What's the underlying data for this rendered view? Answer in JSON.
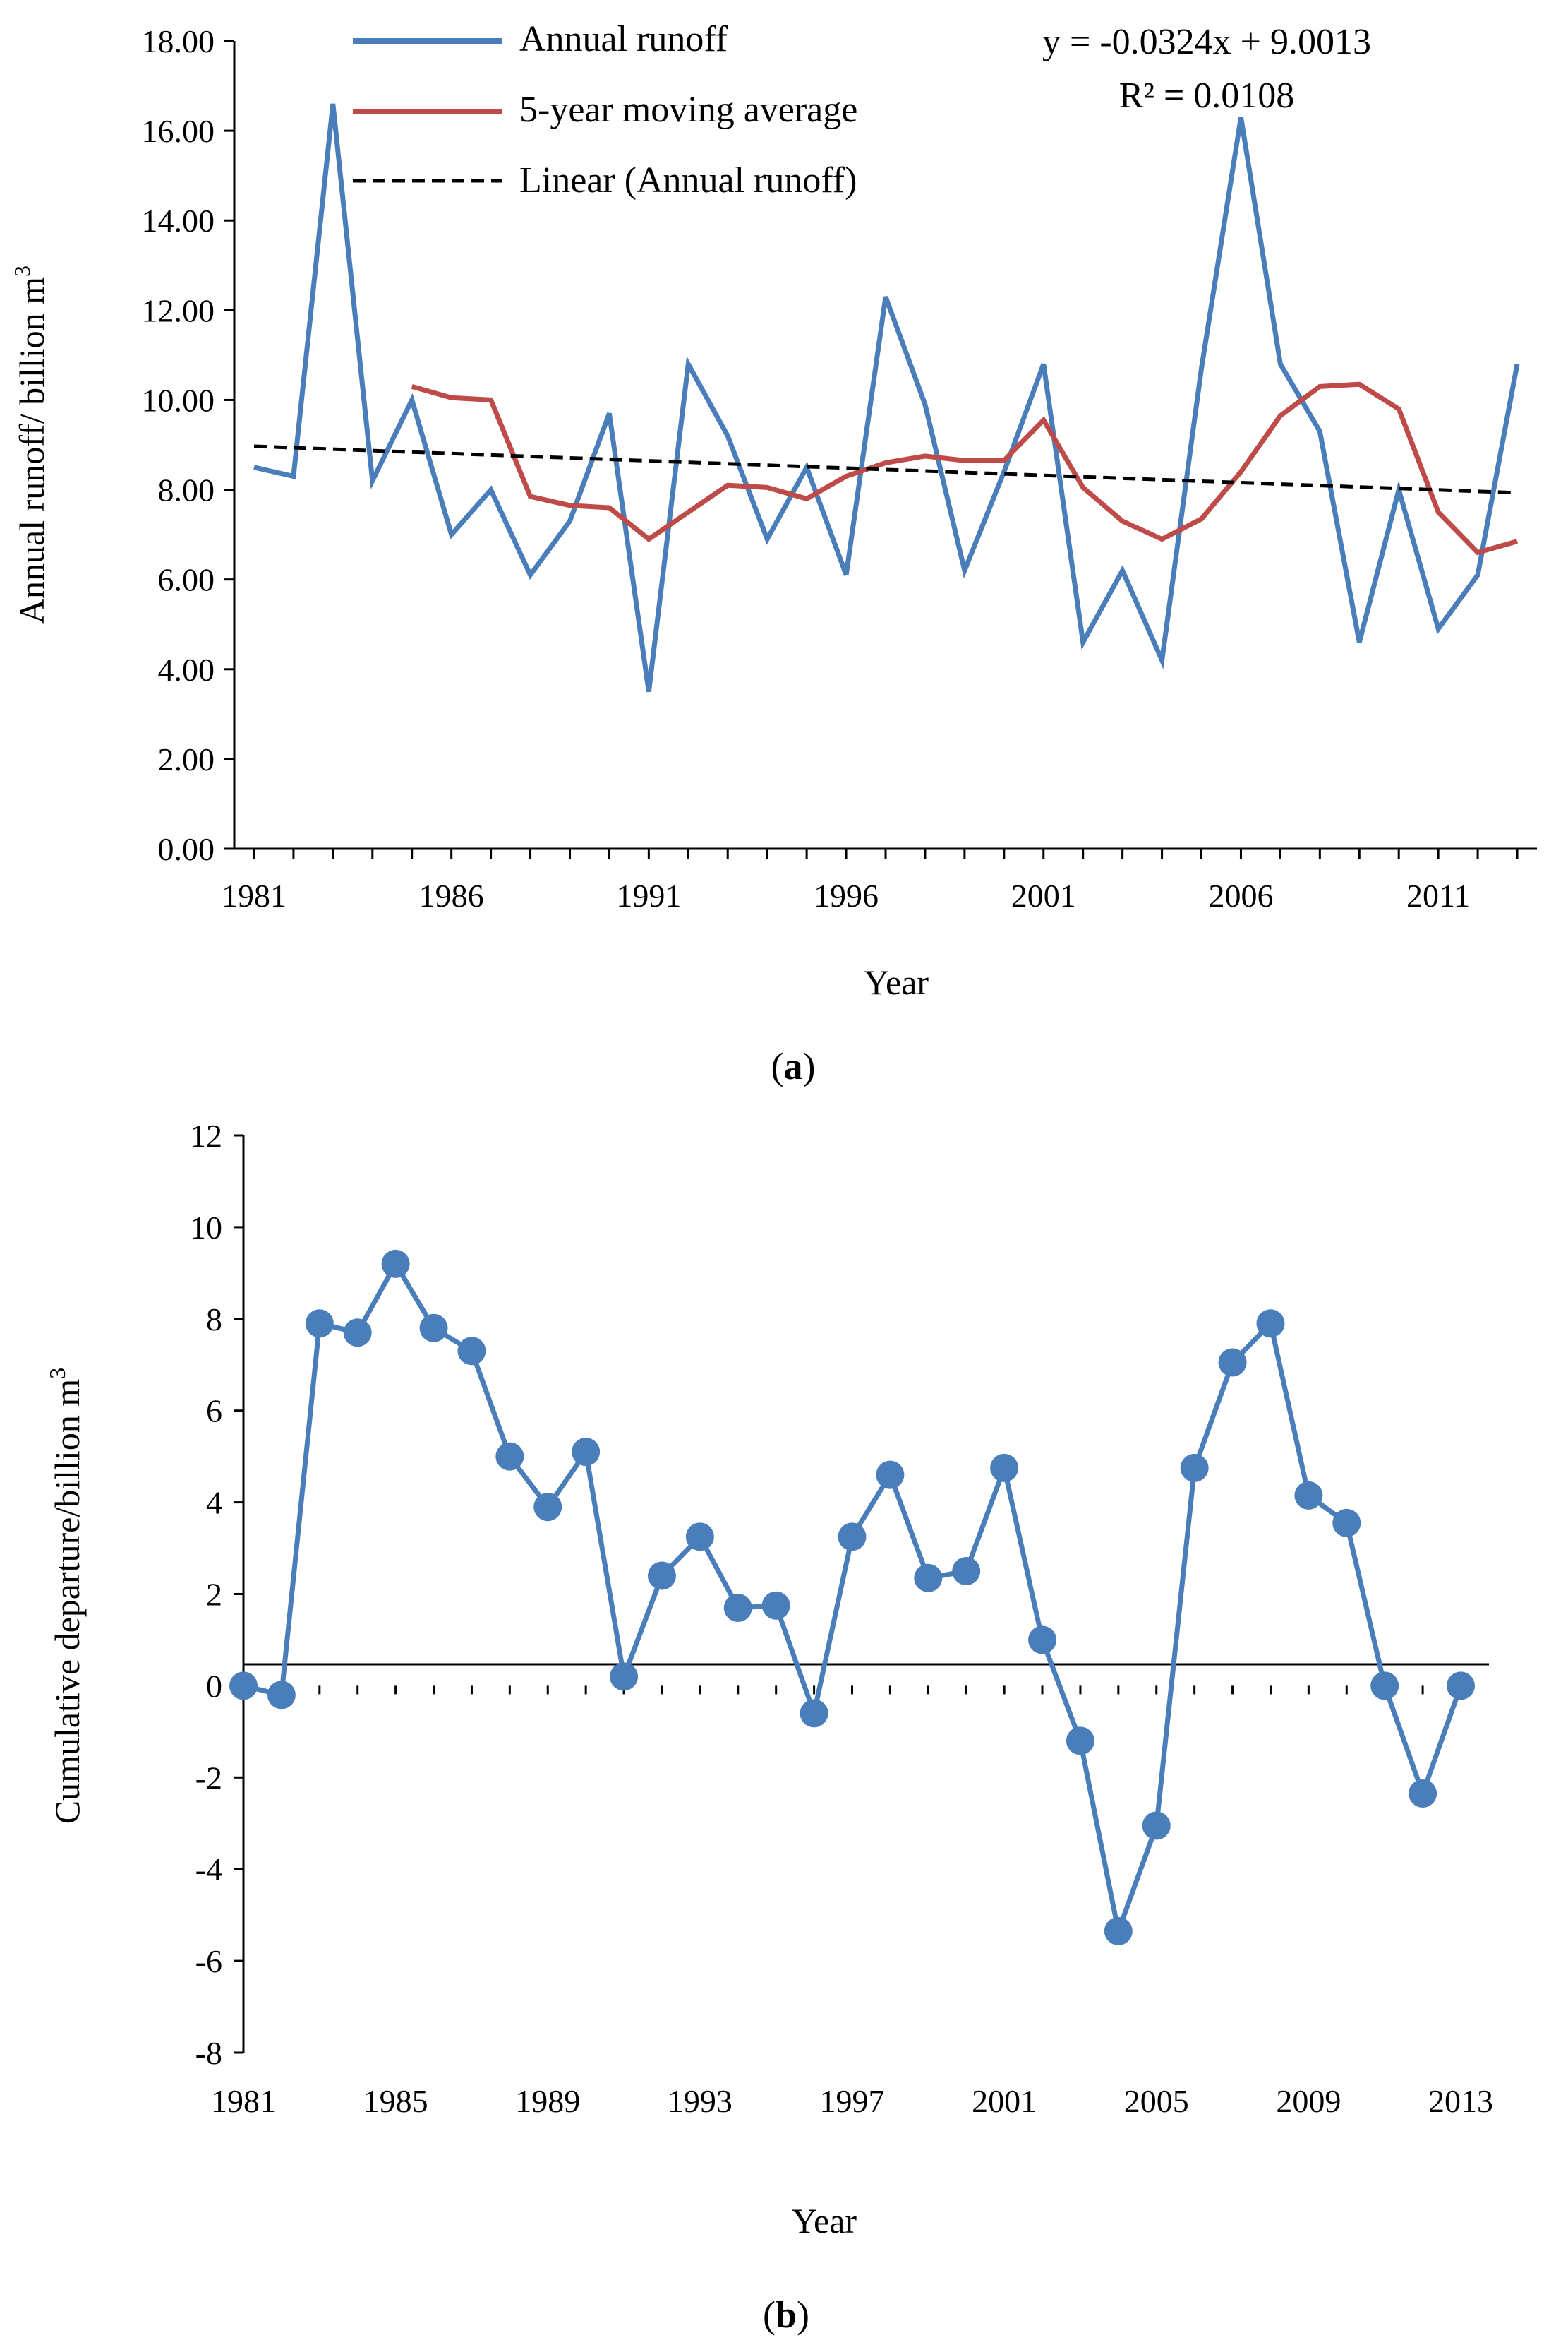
{
  "chart_data": [
    {
      "panel_label": "a",
      "type": "line",
      "xlabel": "Year",
      "ylabel": "Annual runoff/ billion m",
      "ylabel_sup": "3",
      "ylim": [
        0,
        18
      ],
      "y_ticks": [
        "0.00",
        "2.00",
        "4.00",
        "6.00",
        "8.00",
        "10.00",
        "12.00",
        "14.00",
        "16.00",
        "18.00"
      ],
      "y_tick_values": [
        0,
        2,
        4,
        6,
        8,
        10,
        12,
        14,
        16,
        18
      ],
      "x_ticks": [
        "1981",
        "1986",
        "1991",
        "1996",
        "2001",
        "2006",
        "2011"
      ],
      "x_tick_values": [
        1981,
        1986,
        1991,
        1996,
        2001,
        2006,
        2011
      ],
      "x_range": [
        1980.5,
        2013.5
      ],
      "series": [
        {
          "name": "Annual runoff",
          "color": "#4a7ebb",
          "x": [
            1981,
            1982,
            1983,
            1984,
            1985,
            1986,
            1987,
            1988,
            1989,
            1990,
            1991,
            1992,
            1993,
            1994,
            1995,
            1996,
            1997,
            1998,
            1999,
            2000,
            2001,
            2002,
            2003,
            2004,
            2005,
            2006,
            2007,
            2008,
            2009,
            2010,
            2011,
            2012,
            2013
          ],
          "values": [
            8.5,
            8.3,
            16.6,
            8.2,
            10.0,
            7.0,
            8.0,
            6.1,
            7.3,
            9.7,
            3.5,
            10.8,
            9.2,
            6.9,
            8.5,
            6.1,
            12.3,
            9.9,
            6.2,
            8.4,
            10.8,
            4.6,
            6.2,
            4.2,
            10.7,
            16.3,
            10.8,
            9.3,
            4.6,
            8.0,
            4.9,
            6.1,
            10.8
          ]
        },
        {
          "name": "5-year moving average",
          "color": "#be4b48",
          "x": [
            1985,
            1986,
            1987,
            1988,
            1989,
            1990,
            1991,
            1992,
            1993,
            1994,
            1995,
            1996,
            1997,
            1998,
            1999,
            2000,
            2001,
            2002,
            2003,
            2004,
            2005,
            2006,
            2007,
            2008,
            2009,
            2010,
            2011,
            2012,
            2013
          ],
          "values": [
            10.3,
            10.05,
            10.0,
            7.85,
            7.65,
            7.6,
            6.9,
            7.5,
            8.1,
            8.05,
            7.8,
            8.3,
            8.6,
            8.75,
            8.65,
            8.65,
            9.55,
            8.05,
            7.3,
            6.9,
            7.35,
            8.4,
            9.65,
            10.3,
            10.35,
            9.8,
            7.5,
            6.6,
            6.85
          ]
        },
        {
          "name": "Linear (Annual runoff)",
          "color": "#000000",
          "style": "dashed",
          "x": [
            1981,
            2013
          ],
          "values": [
            8.9689,
            7.9321
          ]
        }
      ],
      "legend": [
        "Annual runoff",
        "5-year moving average",
        "Linear (Annual runoff)"
      ],
      "legend_position": "top-left",
      "annotation_equation": "y = -0.0324x + 9.0013",
      "annotation_r2": "R² = 0.0108"
    },
    {
      "panel_label": "b",
      "type": "line",
      "xlabel": "Year",
      "ylabel": "Cumulative departure/billion m",
      "ylabel_sup": "3",
      "ylim": [
        -8,
        12
      ],
      "y_ticks": [
        "-8",
        "-6",
        "-4",
        "-2",
        "0",
        "2",
        "4",
        "6",
        "8",
        "10",
        "12"
      ],
      "y_tick_values": [
        -8,
        -6,
        -4,
        -2,
        0,
        2,
        4,
        6,
        8,
        10,
        12
      ],
      "x_ticks": [
        "1981",
        "1985",
        "1989",
        "1993",
        "1997",
        "2001",
        "2005",
        "2009",
        "2013"
      ],
      "x_tick_values": [
        1981,
        1985,
        1989,
        1993,
        1997,
        2001,
        2005,
        2009,
        2013
      ],
      "x_range": [
        1981,
        2013
      ],
      "series": [
        {
          "name": "Cumulative departure",
          "color": "#4a7ebb",
          "marker": "circle",
          "x": [
            1981,
            1982,
            1983,
            1984,
            1985,
            1986,
            1987,
            1988,
            1989,
            1990,
            1991,
            1992,
            1993,
            1994,
            1995,
            1996,
            1997,
            1998,
            1999,
            2000,
            2001,
            2002,
            2003,
            2004,
            2005,
            2006,
            2007,
            2008,
            2009,
            2010,
            2011,
            2012,
            2013
          ],
          "values": [
            0.0,
            -0.2,
            7.9,
            7.7,
            9.2,
            7.8,
            7.3,
            5.0,
            3.9,
            5.1,
            0.2,
            2.4,
            3.25,
            1.7,
            1.75,
            -0.6,
            3.25,
            4.6,
            2.35,
            2.5,
            4.75,
            1.0,
            -1.2,
            -5.35,
            -3.05,
            4.75,
            7.05,
            7.9,
            4.15,
            3.55,
            0.0,
            -2.35,
            0.0
          ]
        }
      ]
    }
  ]
}
